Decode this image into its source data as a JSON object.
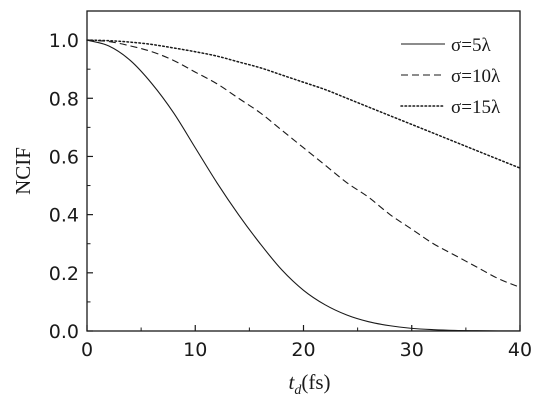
{
  "chart_data": {
    "type": "line",
    "xlabel_main": "t",
    "xlabel_sub": "d",
    "xlabel_unit": "(fs)",
    "ylabel": "NCIF",
    "xlim": [
      0,
      40
    ],
    "ylim": [
      0,
      1.1
    ],
    "x_ticks": [
      0,
      10,
      20,
      30,
      40
    ],
    "x_tick_labels": [
      "0",
      "10",
      "20",
      "30",
      "40"
    ],
    "y_ticks": [
      0,
      0.2,
      0.4,
      0.6,
      0.8,
      1.0
    ],
    "y_tick_labels": [
      "0.0",
      "0.2",
      "0.4",
      "0.6",
      "0.8",
      "1.0"
    ],
    "grid": false,
    "legend_position": "top-right",
    "x": [
      0,
      2,
      4,
      6,
      8,
      10,
      12,
      14,
      16,
      18,
      20,
      22,
      24,
      26,
      28,
      30,
      32,
      34,
      36,
      38,
      40
    ],
    "series": [
      {
        "name": "σ=5λ",
        "style": "solid",
        "values": [
          1.0,
          0.98,
          0.93,
          0.85,
          0.75,
          0.63,
          0.51,
          0.4,
          0.3,
          0.21,
          0.14,
          0.09,
          0.055,
          0.032,
          0.018,
          0.009,
          0.0045,
          0.002,
          0.001,
          0.0004,
          0.0002
        ]
      },
      {
        "name": "σ=10λ",
        "style": "dashed",
        "values": [
          1.0,
          0.995,
          0.98,
          0.96,
          0.93,
          0.89,
          0.85,
          0.8,
          0.75,
          0.69,
          0.63,
          0.57,
          0.51,
          0.46,
          0.4,
          0.35,
          0.3,
          0.26,
          0.22,
          0.18,
          0.15
        ]
      },
      {
        "name": "σ=15λ",
        "style": "dotted",
        "values": [
          1.0,
          0.998,
          0.993,
          0.985,
          0.973,
          0.96,
          0.945,
          0.925,
          0.905,
          0.88,
          0.855,
          0.83,
          0.8,
          0.77,
          0.74,
          0.71,
          0.68,
          0.65,
          0.62,
          0.59,
          0.56
        ]
      }
    ]
  }
}
